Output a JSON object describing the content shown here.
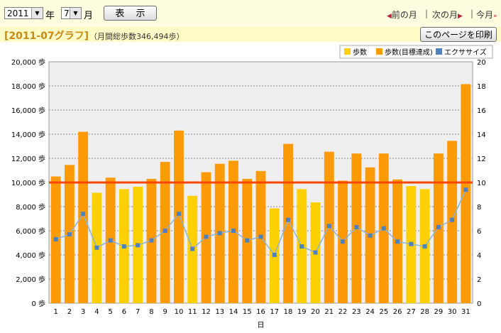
{
  "controls": {
    "year_value": "2011",
    "year_label": "年",
    "month_value": "7",
    "month_label": "月",
    "show_button": "表 示",
    "prev_month": "前の月",
    "next_month": "次の月",
    "this_month": "今月",
    "separator": "|",
    "print_button": "このページを印刷"
  },
  "header": {
    "title": "[2011-07グラフ]",
    "subtitle": "（月間総歩数346,494歩）"
  },
  "colors": {
    "steps": "#fcd003",
    "steps_goal": "#fc9a08",
    "exercise": "#4f81bd",
    "goal_line": "#ff4500"
  },
  "chart_data": {
    "type": "bar",
    "x": [
      1,
      2,
      3,
      4,
      5,
      6,
      7,
      8,
      9,
      10,
      11,
      12,
      13,
      14,
      15,
      16,
      17,
      18,
      19,
      20,
      21,
      22,
      23,
      24,
      25,
      26,
      27,
      28,
      29,
      30,
      31
    ],
    "xlabel": "日",
    "y_left_ticks": [
      "0 歩",
      "2,000 歩",
      "4,000 歩",
      "6,000 歩",
      "8,000 歩",
      "10,000 歩",
      "12,000 歩",
      "14,000 歩",
      "16,000 歩",
      "18,000 歩",
      "20,000 歩"
    ],
    "y_right_ticks": [
      "0",
      "2",
      "4",
      "6",
      "8",
      "10",
      "12",
      "14",
      "16",
      "18",
      "20"
    ],
    "ylim_left": [
      0,
      20000
    ],
    "ylim_right": [
      0,
      20
    ],
    "goal": 10000,
    "legend_position": "top-right",
    "grid": true,
    "series": [
      {
        "name": "歩数",
        "kind": "bar",
        "values": [
          10500,
          11450,
          14200,
          9150,
          10400,
          9450,
          9650,
          10300,
          11700,
          14300,
          8900,
          10850,
          11550,
          11800,
          10300,
          10950,
          7850,
          13200,
          9450,
          8350,
          12550,
          10150,
          12400,
          11250,
          12400,
          10250,
          9700,
          9450,
          12400,
          13450,
          18150
        ]
      },
      {
        "name": "歩数(目標達成)",
        "kind": "bar_goal"
      },
      {
        "name": "エクササイズ",
        "kind": "line",
        "values": [
          5.3,
          5.7,
          7.4,
          4.6,
          5.2,
          4.7,
          4.8,
          5.2,
          6.0,
          7.4,
          4.5,
          5.5,
          5.8,
          6.0,
          5.2,
          5.5,
          4.0,
          6.9,
          4.7,
          4.2,
          6.4,
          5.1,
          6.3,
          5.6,
          6.2,
          5.1,
          4.9,
          4.7,
          6.3,
          6.9,
          9.4
        ]
      }
    ]
  }
}
